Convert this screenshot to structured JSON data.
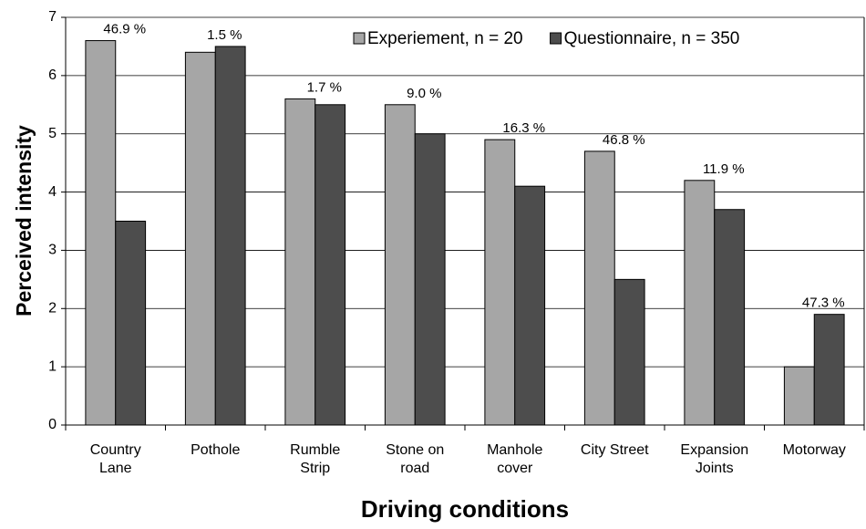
{
  "chart_data": {
    "type": "bar",
    "x_label": "Driving conditions",
    "y_label": "Perceived intensity",
    "categories": [
      "Country\nLane",
      "Pothole",
      "Rumble\nStrip",
      "Stone on\nroad",
      "Manhole\ncover",
      "City Street",
      "Expansion\nJoints",
      "Motorway"
    ],
    "series": [
      {
        "name": "Experiement, n = 20",
        "color": "#a6a6a6",
        "values": [
          6.6,
          6.4,
          5.6,
          5.5,
          4.9,
          4.7,
          4.2,
          1.0
        ]
      },
      {
        "name": "Questionnaire, n = 350",
        "color": "#4d4d4d",
        "values": [
          3.5,
          6.5,
          5.5,
          5.0,
          4.1,
          2.5,
          3.7,
          1.9
        ]
      }
    ],
    "annotations": [
      "46.9 %",
      "1.5 %",
      "1.7 %",
      "9.0 %",
      "16.3 %",
      "46.8 %",
      "11.9 %",
      "47.3 %"
    ],
    "ylim": [
      0,
      7
    ],
    "yticks": [
      0,
      1,
      2,
      3,
      4,
      5,
      6,
      7
    ],
    "grid": true,
    "legend": "top-right"
  }
}
